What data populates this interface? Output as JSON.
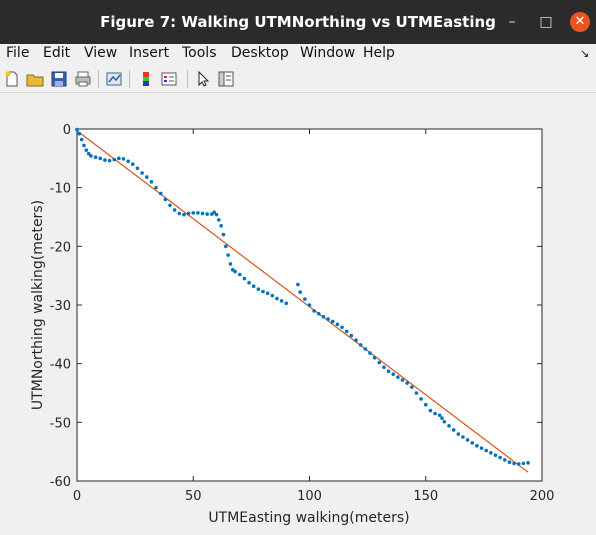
{
  "window": {
    "title": "Figure 7: Walking UTMNorthing vs UTMEasting",
    "minimize_glyph": "–",
    "maximize_glyph": "□",
    "close_glyph": "✕"
  },
  "menu": {
    "items": [
      {
        "label": "File"
      },
      {
        "label": "Edit"
      },
      {
        "label": "View"
      },
      {
        "label": "Insert"
      },
      {
        "label": "Tools"
      },
      {
        "label": "Desktop"
      },
      {
        "label": "Window"
      },
      {
        "label": "Help"
      }
    ],
    "dock_glyph": "↘"
  },
  "toolbar": {
    "icons": [
      "new-figure-icon",
      "open-folder-icon",
      "save-icon",
      "print-icon",
      "link-plot-icon",
      "colorbar-icon",
      "legend-icon",
      "pointer-icon",
      "property-editor-icon"
    ]
  },
  "chart_data": {
    "type": "scatter",
    "xlabel": "UTMEasting walking(meters)",
    "ylabel": "UTMNorthing walking(meters)",
    "xlim": [
      0,
      200
    ],
    "ylim": [
      -60,
      0
    ],
    "xticks": [
      "0",
      "50",
      "100",
      "150",
      "200"
    ],
    "yticks": [
      "0",
      "-10",
      "-20",
      "-30",
      "-40",
      "-50",
      "-60"
    ],
    "grid": false,
    "colors": {
      "points": "#0072bd",
      "fit": "#d95319"
    },
    "fit_line": {
      "x": [
        0,
        194
      ],
      "y": [
        -0.3,
        -58.5
      ]
    },
    "series": [
      {
        "x": [
          0,
          1,
          2,
          3,
          4,
          5,
          6,
          8,
          10,
          12,
          14,
          16,
          18,
          20,
          22,
          24,
          26,
          28,
          30,
          32,
          34,
          36,
          38,
          40,
          42,
          44,
          46,
          48,
          50,
          52,
          54,
          56,
          58,
          59,
          60,
          61,
          62,
          63,
          64,
          65,
          66,
          67,
          68,
          70,
          72,
          74,
          76,
          78,
          80,
          82,
          84,
          86,
          88,
          90,
          95,
          96,
          98,
          100,
          102,
          104,
          106,
          108,
          110,
          112,
          114,
          116,
          118,
          120,
          122,
          124,
          126,
          128,
          130,
          132,
          134,
          136,
          138,
          140,
          142,
          144,
          146,
          148,
          150,
          152,
          154,
          156,
          157,
          158,
          160,
          162,
          164,
          166,
          168,
          170,
          172,
          174,
          176,
          178,
          180,
          182,
          184,
          186,
          188,
          190,
          192,
          194
        ],
        "y": [
          -0.1,
          -0.8,
          -1.8,
          -2.8,
          -3.6,
          -4.2,
          -4.6,
          -4.8,
          -5.0,
          -5.3,
          -5.4,
          -5.2,
          -5.0,
          -5.1,
          -5.5,
          -6.0,
          -6.7,
          -7.5,
          -8.2,
          -9.0,
          -10.0,
          -11.0,
          -12.0,
          -13.0,
          -13.8,
          -14.4,
          -14.6,
          -14.4,
          -14.3,
          -14.3,
          -14.4,
          -14.5,
          -14.5,
          -14.2,
          -14.6,
          -15.5,
          -16.5,
          -18.0,
          -20.0,
          -21.5,
          -23.0,
          -24.0,
          -24.3,
          -24.8,
          -25.5,
          -26.2,
          -26.8,
          -27.3,
          -27.7,
          -28.0,
          -28.4,
          -28.9,
          -29.3,
          -29.7,
          -26.5,
          -27.8,
          -29.0,
          -30.0,
          -31.0,
          -31.5,
          -32.0,
          -32.4,
          -32.8,
          -33.3,
          -33.8,
          -34.5,
          -35.2,
          -36.0,
          -36.8,
          -37.5,
          -38.2,
          -39.0,
          -39.8,
          -40.6,
          -41.3,
          -41.8,
          -42.3,
          -42.8,
          -43.3,
          -44.0,
          -45.0,
          -46.0,
          -47.0,
          -48.0,
          -48.5,
          -48.8,
          -49.3,
          -49.9,
          -50.6,
          -51.3,
          -52.0,
          -52.5,
          -53.0,
          -53.5,
          -54.0,
          -54.4,
          -54.8,
          -55.2,
          -55.6,
          -56.0,
          -56.4,
          -56.8,
          -57.0,
          -57.1,
          -57.0,
          -56.9
        ]
      }
    ]
  }
}
